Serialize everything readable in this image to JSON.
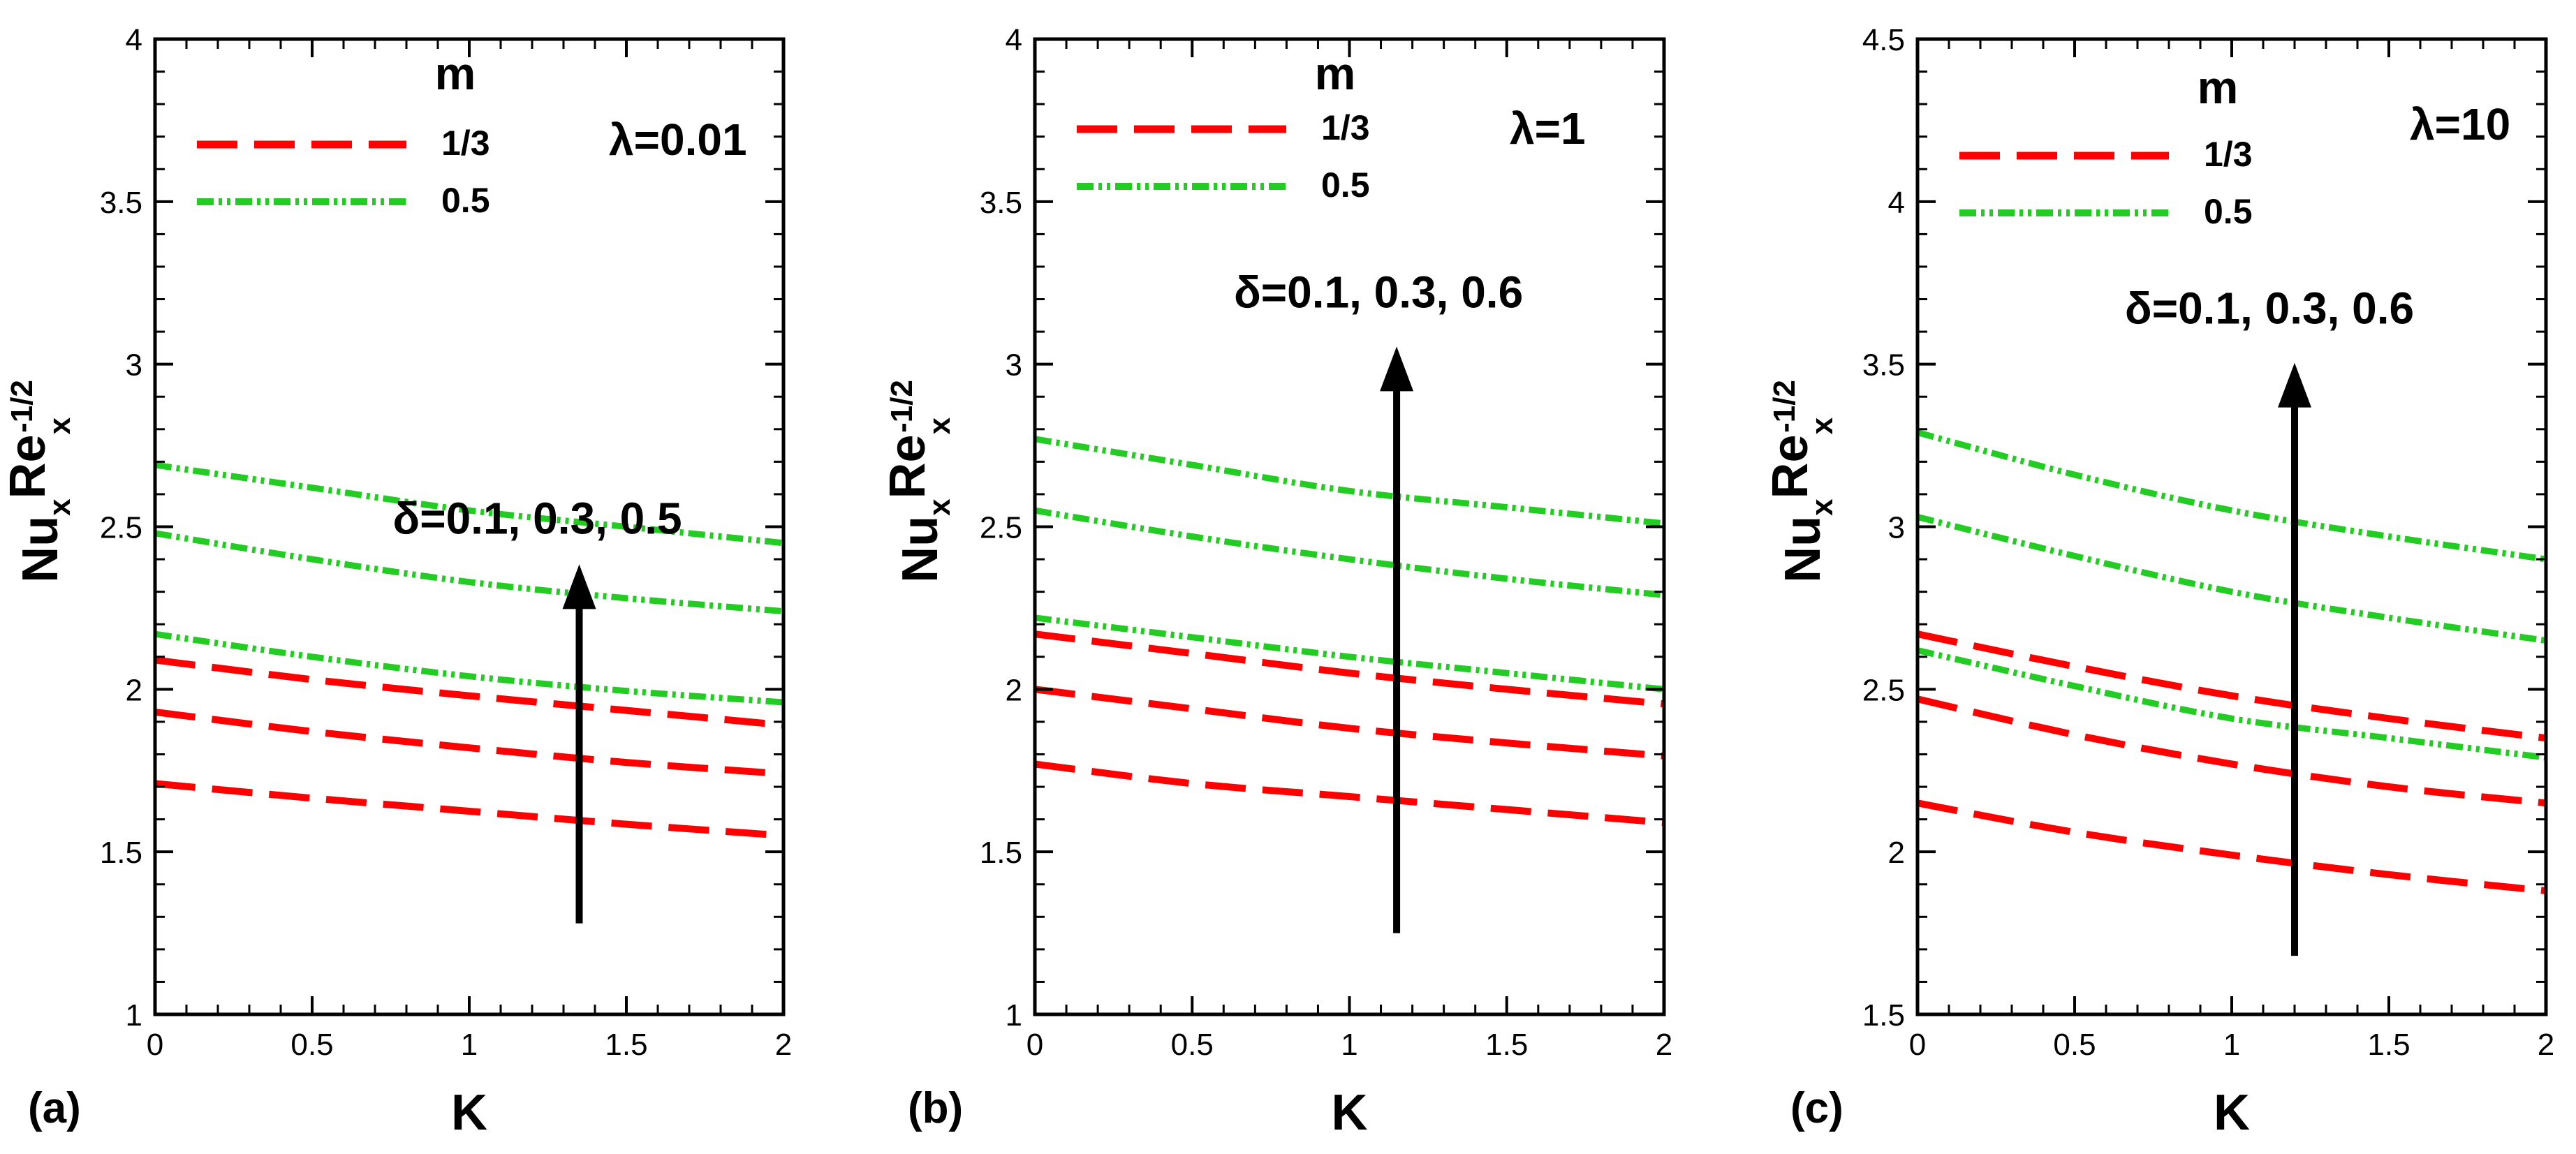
{
  "figure": {
    "description_label": "Three-panel plot of Nu_x Re_x^(-1/2) versus K"
  },
  "legend_style": {
    "1/3": {
      "color": "#ff0000",
      "dash": "long-dash"
    },
    "0.5": {
      "color": "#22cc22",
      "dash": "dash-dot-dot"
    }
  },
  "chart_data": [
    {
      "type": "line",
      "panel_label": "(a)",
      "xlabel": "K",
      "ylabel": {
        "base1": "Nu",
        "sub1": "x",
        "base2": "Re",
        "sub2": "x",
        "sup": "-1/2"
      },
      "xlim": [
        0,
        2
      ],
      "ylim": [
        1,
        4
      ],
      "xticks": [
        0,
        0.5,
        1,
        1.5,
        2
      ],
      "xtick_labels": [
        "0",
        "0.5",
        "1",
        "1.5",
        "2"
      ],
      "yticks": [
        1,
        1.5,
        2,
        2.5,
        3,
        3.5,
        4
      ],
      "ytick_labels": [
        "1",
        "1.5",
        "2",
        "2.5",
        "3",
        "3.5",
        "4"
      ],
      "legend": {
        "title": "m",
        "entries": [
          "1/3",
          "0.5"
        ]
      },
      "lambda_label": "λ=0.01",
      "arrow_label": "δ=0.1, 0.3, 0.5",
      "arrow": {
        "x": 1.35,
        "y_start": 1.28,
        "y_end": 2.38
      },
      "series": [
        {
          "name": "1/3",
          "delta": 0.1,
          "x": [
            0,
            0.5,
            1,
            1.5,
            2
          ],
          "y": [
            1.71,
            1.665,
            1.625,
            1.585,
            1.55
          ]
        },
        {
          "name": "1/3",
          "delta": 0.3,
          "x": [
            0,
            0.5,
            1,
            1.5,
            2
          ],
          "y": [
            1.93,
            1.87,
            1.82,
            1.775,
            1.74
          ]
        },
        {
          "name": "1/3",
          "delta": 0.5,
          "x": [
            0,
            0.5,
            1,
            1.5,
            2
          ],
          "y": [
            2.09,
            2.03,
            1.98,
            1.935,
            1.89
          ]
        },
        {
          "name": "0.5",
          "delta": 0.1,
          "x": [
            0,
            0.5,
            1,
            1.5,
            2
          ],
          "y": [
            2.17,
            2.1,
            2.04,
            1.995,
            1.96
          ]
        },
        {
          "name": "0.5",
          "delta": 0.3,
          "x": [
            0,
            0.5,
            1,
            1.5,
            2
          ],
          "y": [
            2.48,
            2.4,
            2.33,
            2.28,
            2.24
          ]
        },
        {
          "name": "0.5",
          "delta": 0.5,
          "x": [
            0,
            0.5,
            1,
            1.5,
            2
          ],
          "y": [
            2.69,
            2.62,
            2.55,
            2.5,
            2.45
          ]
        }
      ]
    },
    {
      "type": "line",
      "panel_label": "(b)",
      "xlabel": "K",
      "ylabel": {
        "base1": "Nu",
        "sub1": "x",
        "base2": "Re",
        "sub2": "x",
        "sup": "-1/2"
      },
      "xlim": [
        0,
        2
      ],
      "ylim": [
        1,
        4
      ],
      "xticks": [
        0,
        0.5,
        1,
        1.5,
        2
      ],
      "xtick_labels": [
        "0",
        "0.5",
        "1",
        "1.5",
        "2"
      ],
      "yticks": [
        1,
        1.5,
        2,
        2.5,
        3,
        3.5,
        4
      ],
      "ytick_labels": [
        "1",
        "1.5",
        "2",
        "2.5",
        "3",
        "3.5",
        "4"
      ],
      "legend": {
        "title": "m",
        "entries": [
          "1/3",
          "0.5"
        ]
      },
      "lambda_label": "λ=1",
      "arrow_label": "δ=0.1, 0.3, 0.6",
      "arrow": {
        "x": 1.15,
        "y_start": 1.25,
        "y_end": 3.05
      },
      "series": [
        {
          "name": "1/3",
          "delta": 0.1,
          "x": [
            0,
            0.5,
            1,
            1.5,
            2
          ],
          "y": [
            1.77,
            1.71,
            1.67,
            1.63,
            1.59
          ]
        },
        {
          "name": "1/3",
          "delta": 0.3,
          "x": [
            0,
            0.5,
            1,
            1.5,
            2
          ],
          "y": [
            2.0,
            1.94,
            1.88,
            1.835,
            1.795
          ]
        },
        {
          "name": "1/3",
          "delta": 0.6,
          "x": [
            0,
            0.5,
            1,
            1.5,
            2
          ],
          "y": [
            2.17,
            2.11,
            2.05,
            2.0,
            1.955
          ]
        },
        {
          "name": "0.5",
          "delta": 0.1,
          "x": [
            0,
            0.5,
            1,
            1.5,
            2
          ],
          "y": [
            2.22,
            2.16,
            2.1,
            2.05,
            2.0
          ]
        },
        {
          "name": "0.5",
          "delta": 0.3,
          "x": [
            0,
            0.5,
            1,
            1.5,
            2
          ],
          "y": [
            2.55,
            2.47,
            2.4,
            2.34,
            2.29
          ]
        },
        {
          "name": "0.5",
          "delta": 0.6,
          "x": [
            0,
            0.5,
            1,
            1.5,
            2
          ],
          "y": [
            2.77,
            2.69,
            2.61,
            2.56,
            2.51
          ]
        }
      ]
    },
    {
      "type": "line",
      "panel_label": "(c)",
      "xlabel": "K",
      "ylabel": {
        "base1": "Nu",
        "sub1": "x",
        "base2": "Re",
        "sub2": "x",
        "sup": "-1/2"
      },
      "xlim": [
        0,
        2
      ],
      "ylim": [
        1.5,
        4.5
      ],
      "xticks": [
        0,
        0.5,
        1,
        1.5,
        2
      ],
      "xtick_labels": [
        "0",
        "0.5",
        "1",
        "1.5",
        "2"
      ],
      "yticks": [
        1.5,
        2,
        2.5,
        3,
        3.5,
        4,
        4.5
      ],
      "ytick_labels": [
        "1.5",
        "2",
        "2.5",
        "3",
        "3.5",
        "4",
        "4.5"
      ],
      "legend": {
        "title": "m",
        "entries": [
          "1/3",
          "0.5"
        ]
      },
      "lambda_label": "λ=10",
      "arrow_label": "δ=0.1, 0.3, 0.6",
      "arrow": {
        "x": 1.2,
        "y_start": 1.68,
        "y_end": 3.5
      },
      "series": [
        {
          "name": "1/3",
          "delta": 0.1,
          "x": [
            0,
            0.5,
            1,
            1.5,
            2
          ],
          "y": [
            2.15,
            2.06,
            1.99,
            1.93,
            1.88
          ]
        },
        {
          "name": "1/3",
          "delta": 0.3,
          "x": [
            0,
            0.5,
            1,
            1.5,
            2
          ],
          "y": [
            2.47,
            2.36,
            2.27,
            2.2,
            2.15
          ]
        },
        {
          "name": "1/3",
          "delta": 0.6,
          "x": [
            0,
            0.5,
            1,
            1.5,
            2
          ],
          "y": [
            2.67,
            2.57,
            2.48,
            2.41,
            2.35
          ]
        },
        {
          "name": "0.5",
          "delta": 0.1,
          "x": [
            0,
            0.5,
            1,
            1.5,
            2
          ],
          "y": [
            2.62,
            2.51,
            2.41,
            2.35,
            2.29
          ]
        },
        {
          "name": "0.5",
          "delta": 0.3,
          "x": [
            0,
            0.5,
            1,
            1.5,
            2
          ],
          "y": [
            3.03,
            2.91,
            2.8,
            2.72,
            2.65
          ]
        },
        {
          "name": "0.5",
          "delta": 0.6,
          "x": [
            0,
            0.5,
            1,
            1.5,
            2
          ],
          "y": [
            3.29,
            3.16,
            3.05,
            2.97,
            2.9
          ]
        }
      ]
    }
  ]
}
